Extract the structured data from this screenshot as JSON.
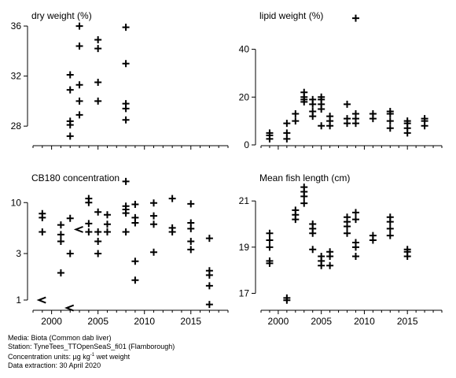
{
  "footer": {
    "media": "Media: Biota (Common dab liver)",
    "station": "Station: TyneTees_TTOpenSeaS_fi01 (Flamborough)",
    "units_prefix": "Concentration units: µg kg",
    "units_sup": "-1",
    "units_suffix": " wet weight",
    "extraction": "Data extraction: 30 April 2020"
  },
  "chart_data": [
    {
      "type": "scatter",
      "title": "dry weight (%)",
      "xlim": [
        1998,
        2019
      ],
      "ylim": [
        26.5,
        37.2
      ],
      "yscale": "linear",
      "xticks": [
        2000,
        2005,
        2010,
        2015
      ],
      "xtick_labels": [],
      "yticks": [
        28,
        32,
        36
      ],
      "ytick_labels": [
        "28",
        "32",
        "36"
      ],
      "points": [
        {
          "x": 2002,
          "y": 27.2
        },
        {
          "x": 2002,
          "y": 28.1
        },
        {
          "x": 2002,
          "y": 28.4
        },
        {
          "x": 2002,
          "y": 30.9
        },
        {
          "x": 2002,
          "y": 32.1
        },
        {
          "x": 2003,
          "y": 28.9
        },
        {
          "x": 2003,
          "y": 30.0
        },
        {
          "x": 2003,
          "y": 31.3
        },
        {
          "x": 2003,
          "y": 34.4
        },
        {
          "x": 2003,
          "y": 36.0
        },
        {
          "x": 2005,
          "y": 30.0
        },
        {
          "x": 2005,
          "y": 31.5
        },
        {
          "x": 2005,
          "y": 34.2
        },
        {
          "x": 2005,
          "y": 34.9
        },
        {
          "x": 2008,
          "y": 28.5
        },
        {
          "x": 2008,
          "y": 29.4
        },
        {
          "x": 2008,
          "y": 29.8
        },
        {
          "x": 2008,
          "y": 33.0
        },
        {
          "x": 2008,
          "y": 35.9
        }
      ],
      "less_than": []
    },
    {
      "type": "scatter",
      "title": "lipid weight (%)",
      "xlim": [
        1998,
        2019
      ],
      "ylim": [
        0,
        56
      ],
      "yscale": "linear",
      "xticks": [
        2000,
        2005,
        2010,
        2015
      ],
      "xtick_labels": [],
      "yticks": [
        0,
        20,
        40
      ],
      "ytick_labels": [
        "0",
        "20",
        "40"
      ],
      "points": [
        {
          "x": 1999,
          "y": 2.5
        },
        {
          "x": 1999,
          "y": 4
        },
        {
          "x": 1999,
          "y": 5
        },
        {
          "x": 2001,
          "y": 2.5
        },
        {
          "x": 2001,
          "y": 5
        },
        {
          "x": 2001,
          "y": 9
        },
        {
          "x": 2002,
          "y": 10
        },
        {
          "x": 2002,
          "y": 13
        },
        {
          "x": 2003,
          "y": 18
        },
        {
          "x": 2003,
          "y": 19
        },
        {
          "x": 2003,
          "y": 20
        },
        {
          "x": 2003,
          "y": 22
        },
        {
          "x": 2004,
          "y": 12
        },
        {
          "x": 2004,
          "y": 14
        },
        {
          "x": 2004,
          "y": 17
        },
        {
          "x": 2004,
          "y": 19
        },
        {
          "x": 2005,
          "y": 8
        },
        {
          "x": 2005,
          "y": 15
        },
        {
          "x": 2005,
          "y": 17
        },
        {
          "x": 2005,
          "y": 19
        },
        {
          "x": 2005,
          "y": 20
        },
        {
          "x": 2006,
          "y": 8
        },
        {
          "x": 2006,
          "y": 10
        },
        {
          "x": 2006,
          "y": 12
        },
        {
          "x": 2008,
          "y": 9
        },
        {
          "x": 2008,
          "y": 11
        },
        {
          "x": 2008,
          "y": 17
        },
        {
          "x": 2009,
          "y": 9
        },
        {
          "x": 2009,
          "y": 11
        },
        {
          "x": 2009,
          "y": 13
        },
        {
          "x": 2009,
          "y": 53
        },
        {
          "x": 2011,
          "y": 11
        },
        {
          "x": 2011,
          "y": 13
        },
        {
          "x": 2013,
          "y": 7
        },
        {
          "x": 2013,
          "y": 10
        },
        {
          "x": 2013,
          "y": 13
        },
        {
          "x": 2013,
          "y": 14
        },
        {
          "x": 2015,
          "y": 5
        },
        {
          "x": 2015,
          "y": 7
        },
        {
          "x": 2015,
          "y": 9
        },
        {
          "x": 2015,
          "y": 10
        },
        {
          "x": 2017,
          "y": 8
        },
        {
          "x": 2017,
          "y": 10
        },
        {
          "x": 2017,
          "y": 11
        }
      ],
      "less_than": []
    },
    {
      "type": "scatter",
      "title": "CB180 concentration",
      "xlim": [
        1998,
        2019
      ],
      "ylim": [
        0.8,
        20
      ],
      "yscale": "log",
      "xticks": [
        2000,
        2005,
        2010,
        2015
      ],
      "xtick_labels": [
        "2000",
        "2005",
        "2010",
        "2015"
      ],
      "yticks": [
        1,
        3,
        10
      ],
      "ytick_labels": [
        "1",
        "3",
        "10"
      ],
      "points": [
        {
          "x": 1999,
          "y": 5
        },
        {
          "x": 1999,
          "y": 7
        },
        {
          "x": 1999,
          "y": 7.7
        },
        {
          "x": 2001,
          "y": 1.9
        },
        {
          "x": 2001,
          "y": 4
        },
        {
          "x": 2001,
          "y": 4.7
        },
        {
          "x": 2001,
          "y": 5.9
        },
        {
          "x": 2002,
          "y": 3
        },
        {
          "x": 2002,
          "y": 6.9
        },
        {
          "x": 2004,
          "y": 5
        },
        {
          "x": 2004,
          "y": 6.1
        },
        {
          "x": 2004,
          "y": 10
        },
        {
          "x": 2004,
          "y": 11
        },
        {
          "x": 2005,
          "y": 3
        },
        {
          "x": 2005,
          "y": 4
        },
        {
          "x": 2005,
          "y": 5
        },
        {
          "x": 2005,
          "y": 8
        },
        {
          "x": 2006,
          "y": 5
        },
        {
          "x": 2006,
          "y": 6
        },
        {
          "x": 2006,
          "y": 7.5
        },
        {
          "x": 2008,
          "y": 5
        },
        {
          "x": 2008,
          "y": 7.8
        },
        {
          "x": 2008,
          "y": 8.5
        },
        {
          "x": 2008,
          "y": 9.2
        },
        {
          "x": 2008,
          "y": 16.5
        },
        {
          "x": 2009,
          "y": 1.6
        },
        {
          "x": 2009,
          "y": 2.5
        },
        {
          "x": 2009,
          "y": 6.2
        },
        {
          "x": 2009,
          "y": 7
        },
        {
          "x": 2009,
          "y": 9.6
        },
        {
          "x": 2011,
          "y": 3.1
        },
        {
          "x": 2011,
          "y": 6
        },
        {
          "x": 2011,
          "y": 7.3
        },
        {
          "x": 2011,
          "y": 9.9
        },
        {
          "x": 2013,
          "y": 5
        },
        {
          "x": 2013,
          "y": 5.5
        },
        {
          "x": 2013,
          "y": 11
        },
        {
          "x": 2015,
          "y": 3.3
        },
        {
          "x": 2015,
          "y": 4
        },
        {
          "x": 2015,
          "y": 5.4
        },
        {
          "x": 2015,
          "y": 6.2
        },
        {
          "x": 2015,
          "y": 9.7
        },
        {
          "x": 2017,
          "y": 0.9
        },
        {
          "x": 2017,
          "y": 1.4
        },
        {
          "x": 2017,
          "y": 1.8
        },
        {
          "x": 2017,
          "y": 2
        },
        {
          "x": 2017,
          "y": 4.3
        }
      ],
      "less_than": [
        {
          "x": 1999,
          "y": 1.0
        },
        {
          "x": 2002,
          "y": 0.83
        },
        {
          "x": 2003,
          "y": 5.3
        }
      ]
    },
    {
      "type": "scatter",
      "title": "Mean fish length (cm)",
      "xlim": [
        1998,
        2019
      ],
      "ylim": [
        16.3,
        22.2
      ],
      "yscale": "linear",
      "xticks": [
        2000,
        2005,
        2010,
        2015
      ],
      "xtick_labels": [
        "2000",
        "2005",
        "2010",
        "2015"
      ],
      "yticks": [
        17,
        19,
        21
      ],
      "ytick_labels": [
        "17",
        "19",
        "21"
      ],
      "points": [
        {
          "x": 1999,
          "y": 18.3
        },
        {
          "x": 1999,
          "y": 18.4
        },
        {
          "x": 1999,
          "y": 19
        },
        {
          "x": 1999,
          "y": 19.3
        },
        {
          "x": 1999,
          "y": 19.6
        },
        {
          "x": 2001,
          "y": 16.7
        },
        {
          "x": 2001,
          "y": 16.8
        },
        {
          "x": 2002,
          "y": 20.2
        },
        {
          "x": 2002,
          "y": 20.4
        },
        {
          "x": 2002,
          "y": 20.6
        },
        {
          "x": 2003,
          "y": 20.9
        },
        {
          "x": 2003,
          "y": 21.2
        },
        {
          "x": 2003,
          "y": 21.4
        },
        {
          "x": 2003,
          "y": 21.6
        },
        {
          "x": 2004,
          "y": 18.9
        },
        {
          "x": 2004,
          "y": 19.6
        },
        {
          "x": 2004,
          "y": 19.8
        },
        {
          "x": 2004,
          "y": 20
        },
        {
          "x": 2005,
          "y": 18.2
        },
        {
          "x": 2005,
          "y": 18.4
        },
        {
          "x": 2005,
          "y": 18.6
        },
        {
          "x": 2006,
          "y": 18.2
        },
        {
          "x": 2006,
          "y": 18.6
        },
        {
          "x": 2006,
          "y": 18.8
        },
        {
          "x": 2008,
          "y": 19.6
        },
        {
          "x": 2008,
          "y": 19.9
        },
        {
          "x": 2008,
          "y": 20.1
        },
        {
          "x": 2008,
          "y": 20.3
        },
        {
          "x": 2009,
          "y": 18.6
        },
        {
          "x": 2009,
          "y": 19
        },
        {
          "x": 2009,
          "y": 19.2
        },
        {
          "x": 2009,
          "y": 20.2
        },
        {
          "x": 2009,
          "y": 20.5
        },
        {
          "x": 2011,
          "y": 19.3
        },
        {
          "x": 2011,
          "y": 19.5
        },
        {
          "x": 2013,
          "y": 19.5
        },
        {
          "x": 2013,
          "y": 19.8
        },
        {
          "x": 2013,
          "y": 20.1
        },
        {
          "x": 2013,
          "y": 20.3
        },
        {
          "x": 2015,
          "y": 18.6
        },
        {
          "x": 2015,
          "y": 18.8
        },
        {
          "x": 2015,
          "y": 18.9
        }
      ],
      "less_than": []
    }
  ]
}
